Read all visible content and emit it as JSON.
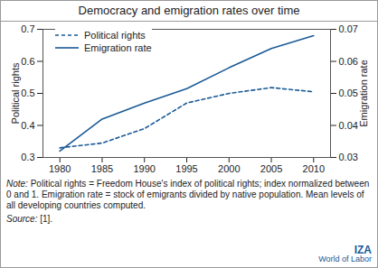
{
  "chart_data": {
    "type": "line",
    "title": "Democracy and emigration rates over time",
    "x": [
      1980,
      1985,
      1990,
      1995,
      2000,
      2005,
      2010
    ],
    "xlim": [
      1978,
      2012
    ],
    "xticks": [
      1980,
      1985,
      1990,
      1995,
      2000,
      2005,
      2010
    ],
    "y_label": "Political rights",
    "ylim": [
      0.3,
      0.7
    ],
    "yticks": [
      0.3,
      0.4,
      0.5,
      0.6,
      0.7
    ],
    "y2_label": "Emigration rate",
    "y2lim": [
      0.03,
      0.07
    ],
    "y2ticks": [
      0.03,
      0.04,
      0.05,
      0.06,
      0.07
    ],
    "legend": "top-left",
    "series": [
      {
        "name": "Political rights",
        "color": "#1a5a96",
        "line_style": "dashed",
        "axis": "y",
        "values": [
          0.33,
          0.345,
          0.39,
          0.47,
          0.5,
          0.518,
          0.505
        ]
      },
      {
        "name": "Emigration rate",
        "color": "#1a5a96",
        "line_style": "solid",
        "axis": "y2",
        "values": [
          0.032,
          0.042,
          0.047,
          0.0515,
          0.058,
          0.064,
          0.068
        ]
      }
    ],
    "note": "Note: Political rights = Freedom House's index of political rights; index normalized between 0 and 1. Emigration rate = stock of emigrants divided by native population. Mean levels of all developing countries computed.",
    "source": "Source: [1].",
    "logo": [
      "IZA",
      "World of Labor"
    ]
  }
}
